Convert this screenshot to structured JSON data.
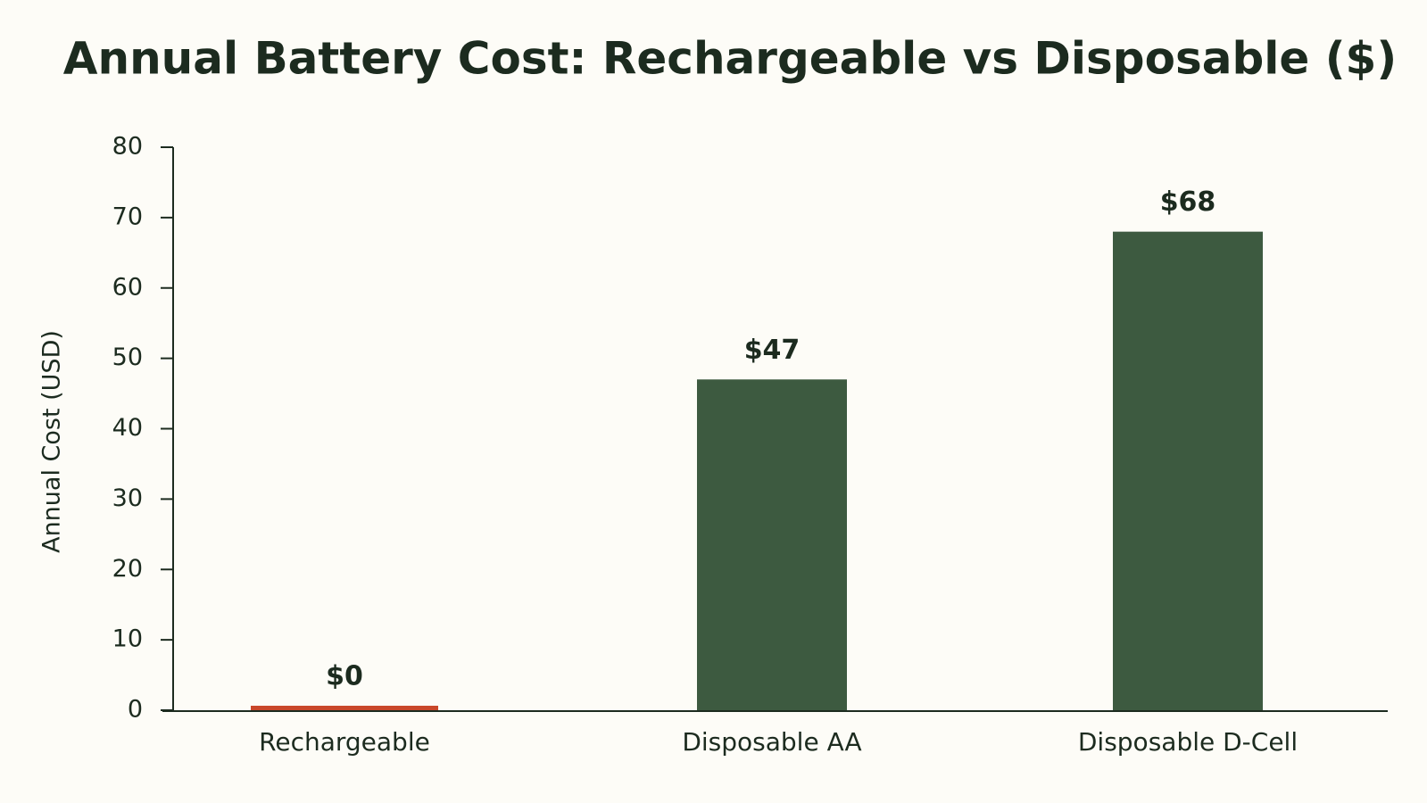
{
  "chart_data": {
    "type": "bar",
    "title": "Annual Battery Cost: Rechargeable vs Disposable ($)",
    "ylabel": "Annual Cost (USD)",
    "categories": [
      "Rechargeable",
      "Disposable AA",
      "Disposable D-Cell"
    ],
    "values": [
      0,
      47,
      68
    ],
    "value_labels": [
      "$0",
      "$47",
      "$68"
    ],
    "colors": [
      "#c9472a",
      "#3d5a40",
      "#3d5a40"
    ],
    "ylim": [
      0,
      80
    ],
    "yticks": [
      0,
      10,
      20,
      30,
      40,
      50,
      60,
      70,
      80
    ],
    "grid": false
  }
}
